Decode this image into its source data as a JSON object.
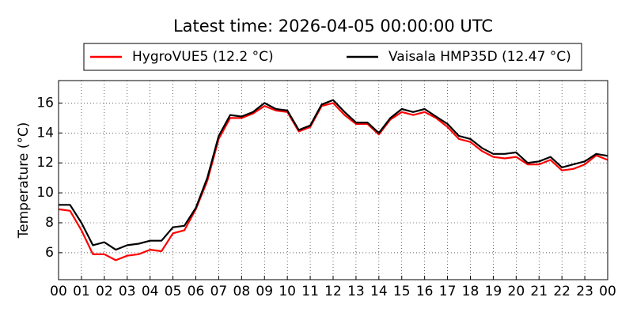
{
  "chart_data": {
    "type": "line",
    "title": "Latest time: 2026-04-05 00:00:00 UTC",
    "y_label": "Temperature (°C)",
    "x": [
      0,
      0.5,
      1,
      1.5,
      2,
      2.5,
      3,
      3.5,
      4,
      4.5,
      5,
      5.5,
      6,
      6.5,
      7,
      7.5,
      8,
      8.5,
      9,
      9.5,
      10,
      10.5,
      11,
      11.5,
      12,
      12.5,
      13,
      13.5,
      14,
      14.5,
      15,
      15.5,
      16,
      16.5,
      17,
      17.5,
      18,
      18.5,
      19,
      19.5,
      20,
      20.5,
      21,
      21.5,
      22,
      22.5,
      23,
      23.5,
      24
    ],
    "series": [
      {
        "name": "HygroVUE5 (12.2 °C)",
        "color": "#ff0000",
        "values": [
          8.9,
          8.8,
          7.5,
          5.9,
          5.9,
          5.5,
          5.8,
          5.9,
          6.2,
          6.1,
          7.3,
          7.5,
          8.9,
          10.8,
          13.6,
          15.0,
          15.0,
          15.3,
          15.8,
          15.5,
          15.4,
          14.1,
          14.4,
          15.8,
          16.0,
          15.2,
          14.6,
          14.6,
          13.9,
          14.9,
          15.4,
          15.2,
          15.4,
          15.0,
          14.4,
          13.6,
          13.4,
          12.8,
          12.4,
          12.3,
          12.4,
          11.9,
          11.9,
          12.2,
          11.5,
          11.6,
          11.9,
          12.5,
          12.2
        ]
      },
      {
        "name": "Vaisala HMP35D (12.47 °C)",
        "color": "#000000",
        "values": [
          9.2,
          9.2,
          8.0,
          6.5,
          6.7,
          6.2,
          6.5,
          6.6,
          6.8,
          6.8,
          7.7,
          7.8,
          9.0,
          11.0,
          13.8,
          15.2,
          15.1,
          15.4,
          16.0,
          15.6,
          15.5,
          14.2,
          14.5,
          15.9,
          16.2,
          15.4,
          14.7,
          14.7,
          14.0,
          15.0,
          15.6,
          15.4,
          15.6,
          15.1,
          14.6,
          13.8,
          13.6,
          13.0,
          12.6,
          12.6,
          12.7,
          12.0,
          12.1,
          12.4,
          11.7,
          11.9,
          12.1,
          12.6,
          12.47
        ]
      }
    ],
    "xlim": [
      0,
      24
    ],
    "xticks": [
      {
        "value": 0,
        "label": "00"
      },
      {
        "value": 1,
        "label": "01"
      },
      {
        "value": 2,
        "label": "02"
      },
      {
        "value": 3,
        "label": "03"
      },
      {
        "value": 4,
        "label": "04"
      },
      {
        "value": 5,
        "label": "05"
      },
      {
        "value": 6,
        "label": "06"
      },
      {
        "value": 7,
        "label": "07"
      },
      {
        "value": 8,
        "label": "08"
      },
      {
        "value": 9,
        "label": "09"
      },
      {
        "value": 10,
        "label": "10"
      },
      {
        "value": 11,
        "label": "11"
      },
      {
        "value": 12,
        "label": "12"
      },
      {
        "value": 13,
        "label": "13"
      },
      {
        "value": 14,
        "label": "14"
      },
      {
        "value": 15,
        "label": "15"
      },
      {
        "value": 16,
        "label": "16"
      },
      {
        "value": 17,
        "label": "17"
      },
      {
        "value": 18,
        "label": "18"
      },
      {
        "value": 19,
        "label": "19"
      },
      {
        "value": 20,
        "label": "20"
      },
      {
        "value": 21,
        "label": "21"
      },
      {
        "value": 22,
        "label": "22"
      },
      {
        "value": 23,
        "label": "23"
      },
      {
        "value": 24,
        "label": "00"
      }
    ],
    "ylim": [
      4.2,
      17.5
    ],
    "yticks": [
      6,
      8,
      10,
      12,
      14,
      16
    ],
    "grid": true
  }
}
